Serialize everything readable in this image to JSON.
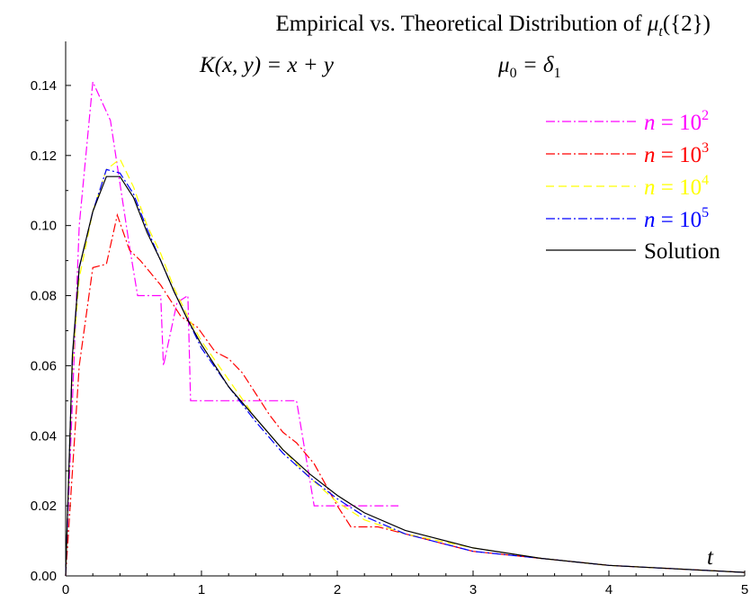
{
  "chart_data": {
    "type": "line",
    "title": "Empirical vs. Theoretical Distribution of μt({2})",
    "title_parts": {
      "prefix": "Empirical vs. Theoretical Distribution of ",
      "mu": "μ",
      "sub": "t",
      "suffix": "({2})"
    },
    "subtitle_left": "K(x, y) = x + y",
    "subtitle_right": {
      "mu": "μ",
      "sub0": "0",
      "eq": " = δ",
      "sub1": "1"
    },
    "xlabel": "t",
    "ylabel": "",
    "xlim": [
      0,
      5
    ],
    "ylim": [
      0,
      0.15
    ],
    "grid": false,
    "legend_position": "top-right",
    "x_ticks": [
      0,
      1,
      2,
      3,
      4,
      5
    ],
    "x_tick_labels": [
      "0",
      "1",
      "2",
      "3",
      "4",
      "5"
    ],
    "y_ticks": [
      0,
      0.02,
      0.04,
      0.06,
      0.08,
      0.1,
      0.12,
      0.14
    ],
    "y_tick_labels": [
      "0.00",
      "0.02",
      "0.04",
      "0.06",
      "0.08",
      "0.10",
      "0.12",
      "0.14"
    ],
    "series": [
      {
        "name": "n = 10^2",
        "legend": {
          "base": "n = 10",
          "exp": "2"
        },
        "color": "#ff00ff",
        "dash": "10,3,2,3",
        "points": [
          [
            0,
            0
          ],
          [
            0.1,
            0.1
          ],
          [
            0.2,
            0.141
          ],
          [
            0.33,
            0.13
          ],
          [
            0.47,
            0.094
          ],
          [
            0.53,
            0.08
          ],
          [
            0.7,
            0.08
          ],
          [
            0.72,
            0.06
          ],
          [
            0.82,
            0.078
          ],
          [
            0.9,
            0.08
          ],
          [
            0.92,
            0.05
          ],
          [
            1.7,
            0.05
          ],
          [
            1.83,
            0.02
          ],
          [
            2.45,
            0.02
          ]
        ]
      },
      {
        "name": "n = 10^3",
        "legend": {
          "base": "n = 10",
          "exp": "3"
        },
        "color": "#ff0000",
        "dash": "10,3,2,3",
        "points": [
          [
            0,
            0
          ],
          [
            0.1,
            0.06
          ],
          [
            0.2,
            0.088
          ],
          [
            0.3,
            0.089
          ],
          [
            0.38,
            0.103
          ],
          [
            0.47,
            0.093
          ],
          [
            0.55,
            0.09
          ],
          [
            0.7,
            0.083
          ],
          [
            0.85,
            0.074
          ],
          [
            0.97,
            0.071
          ],
          [
            1.1,
            0.064
          ],
          [
            1.2,
            0.062
          ],
          [
            1.3,
            0.058
          ],
          [
            1.4,
            0.052
          ],
          [
            1.5,
            0.046
          ],
          [
            1.6,
            0.041
          ],
          [
            1.7,
            0.038
          ],
          [
            1.83,
            0.032
          ],
          [
            2.0,
            0.02
          ],
          [
            2.1,
            0.014
          ],
          [
            2.3,
            0.014
          ],
          [
            2.6,
            0.011
          ],
          [
            3,
            0.007
          ],
          [
            3.5,
            0.005
          ],
          [
            4,
            0.003
          ],
          [
            4.5,
            0.002
          ],
          [
            5,
            0.001
          ]
        ]
      },
      {
        "name": "n = 10^4",
        "legend": {
          "base": "n = 10",
          "exp": "4"
        },
        "color": "#ffff00",
        "dash": "9,5",
        "points": [
          [
            0,
            0
          ],
          [
            0.05,
            0.06
          ],
          [
            0.1,
            0.085
          ],
          [
            0.2,
            0.104
          ],
          [
            0.3,
            0.116
          ],
          [
            0.4,
            0.119
          ],
          [
            0.5,
            0.111
          ],
          [
            0.6,
            0.1
          ],
          [
            0.7,
            0.092
          ],
          [
            0.8,
            0.082
          ],
          [
            0.9,
            0.074
          ],
          [
            1.0,
            0.067
          ],
          [
            1.2,
            0.056
          ],
          [
            1.4,
            0.045
          ],
          [
            1.6,
            0.036
          ],
          [
            1.8,
            0.028
          ],
          [
            2.0,
            0.021
          ],
          [
            2.2,
            0.016
          ],
          [
            2.5,
            0.012
          ],
          [
            3,
            0.008
          ],
          [
            3.5,
            0.005
          ],
          [
            4,
            0.003
          ],
          [
            4.5,
            0.002
          ],
          [
            5,
            0.001
          ]
        ]
      },
      {
        "name": "n = 10^5",
        "legend": {
          "base": "n = 10",
          "exp": "5"
        },
        "color": "#0000ff",
        "dash": "10,3,2,3",
        "points": [
          [
            0,
            0
          ],
          [
            0.05,
            0.062
          ],
          [
            0.1,
            0.088
          ],
          [
            0.2,
            0.104
          ],
          [
            0.3,
            0.116
          ],
          [
            0.4,
            0.115
          ],
          [
            0.5,
            0.109
          ],
          [
            0.6,
            0.099
          ],
          [
            0.7,
            0.09
          ],
          [
            0.8,
            0.081
          ],
          [
            0.9,
            0.073
          ],
          [
            1.0,
            0.065
          ],
          [
            1.2,
            0.054
          ],
          [
            1.4,
            0.044
          ],
          [
            1.6,
            0.035
          ],
          [
            1.8,
            0.028
          ],
          [
            2.0,
            0.022
          ],
          [
            2.2,
            0.017
          ],
          [
            2.5,
            0.012
          ],
          [
            3,
            0.007
          ],
          [
            3.5,
            0.005
          ],
          [
            4,
            0.003
          ],
          [
            4.5,
            0.002
          ],
          [
            5,
            0.001
          ]
        ]
      },
      {
        "name": "Solution",
        "legend": {
          "base": "Solution",
          "exp": ""
        },
        "color": "#000000",
        "dash": "",
        "points": [
          [
            0,
            0
          ],
          [
            0.05,
            0.063
          ],
          [
            0.1,
            0.088
          ],
          [
            0.2,
            0.104
          ],
          [
            0.3,
            0.114
          ],
          [
            0.4,
            0.114
          ],
          [
            0.5,
            0.108
          ],
          [
            0.6,
            0.098
          ],
          [
            0.7,
            0.09
          ],
          [
            0.8,
            0.081
          ],
          [
            0.9,
            0.073
          ],
          [
            1.0,
            0.066
          ],
          [
            1.2,
            0.054
          ],
          [
            1.4,
            0.045
          ],
          [
            1.6,
            0.036
          ],
          [
            1.8,
            0.029
          ],
          [
            2.0,
            0.023
          ],
          [
            2.2,
            0.018
          ],
          [
            2.5,
            0.013
          ],
          [
            3,
            0.008
          ],
          [
            3.5,
            0.005
          ],
          [
            4,
            0.003
          ],
          [
            4.5,
            0.002
          ],
          [
            5,
            0.001
          ]
        ]
      }
    ]
  }
}
